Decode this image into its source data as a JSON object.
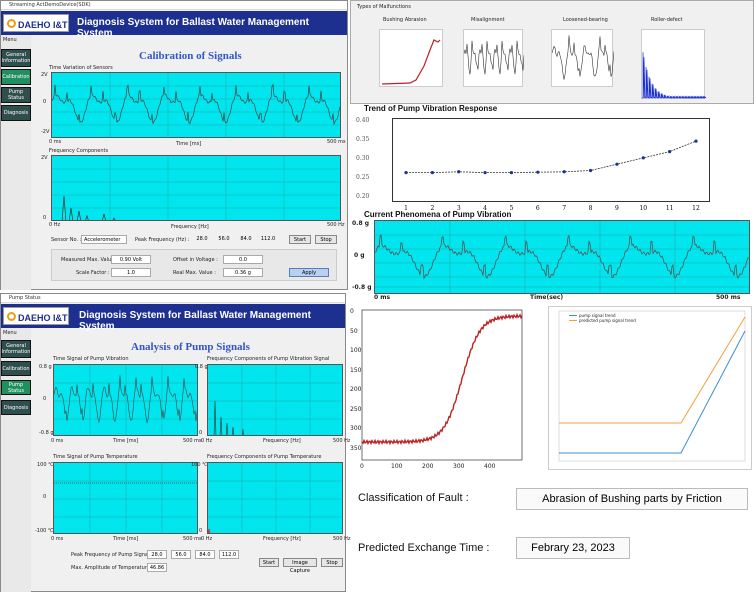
{
  "top_window": {
    "titlebar": "Streaming ActDemoDevice(SDK)",
    "logo": "DAEHO I&T",
    "logo_small": "Smart Future",
    "header": "Diagnosis System for Ballast Water Management System",
    "menu_label": "Menu",
    "menu": [
      "General Information",
      "Calibration",
      "Pump Status",
      "Diagnosis"
    ],
    "section_title": "Calibration of Signals",
    "time_label": "Time Variation of Sensors",
    "time_y": [
      "2V",
      "0",
      "-2V"
    ],
    "time_x": [
      "0 ms",
      "Time [ms]",
      "500 ms"
    ],
    "freq_label": "Frequency Components",
    "freq_y": [
      "2V",
      "0"
    ],
    "freq_x": [
      "0 Hz",
      "Frequency [Hz]",
      "500 Hz"
    ],
    "sensor_label": "Sensor No. :",
    "sensor_value": "Accelerometer",
    "peak_label": "Peak Frequency (Hz) :",
    "peaks": [
      "28.0",
      "56.0",
      "84.0",
      "112.0"
    ],
    "start": "Start",
    "stop": "Stop",
    "measured_label": "Measured Max. Value :",
    "measured_value": "0.90 Volt",
    "offset_label": "Offset in Voltage :",
    "offset_value": "0.0",
    "scale_label": "Scale Factor :",
    "scale_value": "1.0",
    "real_label": "Real Max. Value :",
    "real_value": "0.36 g",
    "apply": "Apply"
  },
  "bottom_window": {
    "titlebar": "Pump Status",
    "logo": "DAEHO I&T",
    "header": "Diagnosis System for Ballast Water Management System",
    "menu_label": "Menu",
    "menu": [
      "General Information",
      "Calibration",
      "Pump Status",
      "Diagnosis"
    ],
    "section_title": "Analysis of Pump Signals",
    "p1_title": "Time Signal of Pump Vibration",
    "p1_y": [
      "0.8 g",
      "0",
      "-0.8 g"
    ],
    "p1_x": [
      "0 ms",
      "Time [ms]",
      "500 ms"
    ],
    "p2_title": "Frequency Components of Pump Vibration Signal",
    "p2_y": [
      "0.8 g",
      "0"
    ],
    "p2_x": [
      "0 Hz",
      "Frequency [Hz]",
      "500 Hz"
    ],
    "p3_title": "Time Signal of Pump Temperature",
    "p3_y": [
      "100 ℃",
      "0",
      "-100 ℃"
    ],
    "p3_x": [
      "0 ms",
      "Time [ms]",
      "500 ms"
    ],
    "p4_title": "Frequency Components of Pump Temperature",
    "p4_y": [
      "100 ℃",
      "0"
    ],
    "p4_x": [
      "0 Hz",
      "Frequency [Hz]",
      "500 Hz"
    ],
    "peak_label": "Peak Frequency of Pump Signal (Hz) :",
    "peaks": [
      "28.0",
      "56.0",
      "84.0",
      "112.0"
    ],
    "temp_label": "Max. Amplitude of Temperature (℃) :",
    "temp_value": "46.86",
    "start": "Start",
    "capture": "Image Capture",
    "stop": "Stop"
  },
  "malfunctions": {
    "title": "Types of Malfunctions",
    "items": [
      "Bushing Abrasion",
      "Misalignment",
      "Loosened-bearing",
      "Roller-defect"
    ]
  },
  "trend": {
    "title": "Trend of Pump Vibration Response",
    "y_ticks": [
      "0.40",
      "0.35",
      "0.30",
      "0.25",
      "0.20"
    ],
    "x_ticks": [
      "1",
      "2",
      "3",
      "4",
      "5",
      "6",
      "7",
      "8",
      "9",
      "10",
      "11",
      "12"
    ]
  },
  "phenomena": {
    "title": "Current Phenomena of Pump Vibration",
    "y": [
      "0.8 g",
      "0 g",
      "-0.8 g"
    ],
    "x": [
      "0 ms",
      "Time(sec)",
      "500 ms"
    ]
  },
  "big_plot": {
    "y_ticks": [
      "0",
      "50",
      "100",
      "150",
      "200",
      "250",
      "300",
      "350"
    ],
    "x_ticks": [
      "0",
      "100",
      "200",
      "300",
      "400"
    ]
  },
  "pred_plot": {
    "legend": [
      "pump signal trend",
      "predicted pump signal trend"
    ]
  },
  "result": {
    "fault_label": "Classification of Fault :",
    "fault_value": "Abrasion of Bushing parts by Friction",
    "time_label": "Predicted Exchange Time :",
    "time_value": "Febrary 23, 2023"
  },
  "colors": {
    "header": "#1d2f8f",
    "plot": "#00e5ee",
    "title": "#3355c9"
  },
  "chart_data": [
    {
      "type": "line",
      "title": "Trend of Pump Vibration Response",
      "x": [
        1,
        2,
        3,
        4,
        5,
        6,
        7,
        8,
        9,
        10,
        11,
        12
      ],
      "values": [
        0.27,
        0.27,
        0.272,
        0.27,
        0.27,
        0.271,
        0.272,
        0.275,
        0.29,
        0.305,
        0.32,
        0.345
      ],
      "ylim": [
        0.2,
        0.4
      ]
    }
  ]
}
